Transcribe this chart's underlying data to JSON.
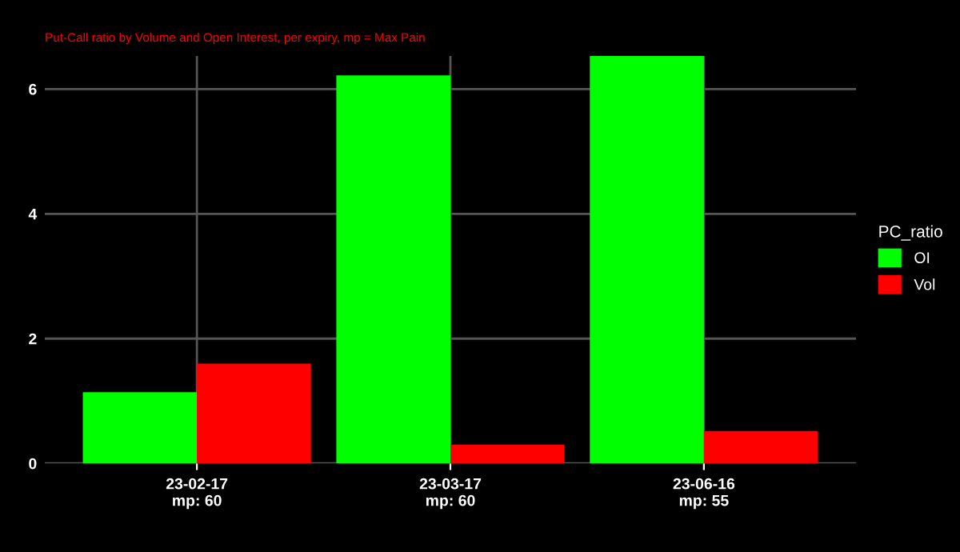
{
  "chart_data": {
    "type": "bar",
    "subtitle": "Put-Call ratio by Volume and Open Interest, per expiry, mp = Max Pain",
    "categories": [
      "23-02-17\nmp: 60",
      "23-03-17\nmp: 60",
      "23-06-16\nmp: 55"
    ],
    "series": [
      {
        "name": "OI",
        "color": "#00ff00",
        "values": [
          1.14,
          6.22,
          6.53
        ]
      },
      {
        "name": "Vol",
        "color": "#ff0000",
        "values": [
          1.6,
          0.3,
          0.52
        ]
      }
    ],
    "ylim": [
      0,
      6.53
    ],
    "yticks": [
      0,
      2,
      4,
      6
    ],
    "grid": true,
    "legend": "right",
    "legend_title": "PC_ratio"
  }
}
